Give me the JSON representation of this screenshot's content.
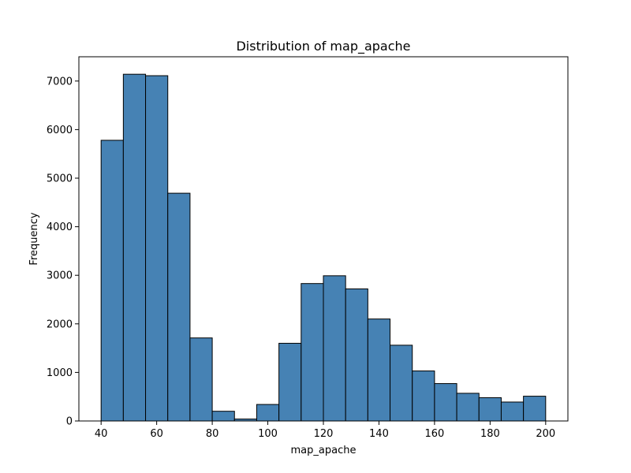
{
  "chart_data": {
    "type": "bar",
    "title": "Distribution of map_apache",
    "xlabel": "map_apache",
    "ylabel": "Frequency",
    "bin_edges": [
      40,
      48,
      56,
      64,
      72,
      80,
      88,
      96,
      104,
      112,
      120,
      128,
      136,
      144,
      152,
      160,
      168,
      176,
      184,
      192,
      200
    ],
    "values": [
      5780,
      7140,
      7110,
      4690,
      1710,
      200,
      40,
      340,
      1600,
      2830,
      2990,
      2720,
      2100,
      1560,
      1030,
      770,
      570,
      480,
      390,
      510
    ],
    "xlim": [
      32,
      208
    ],
    "ylim": [
      0,
      7500
    ],
    "xticks": [
      40,
      60,
      80,
      100,
      120,
      140,
      160,
      180,
      200
    ],
    "yticks": [
      0,
      1000,
      2000,
      3000,
      4000,
      5000,
      6000,
      7000
    ],
    "bar_color": "#4682b4",
    "edge_color": "#000000",
    "grid": false
  }
}
